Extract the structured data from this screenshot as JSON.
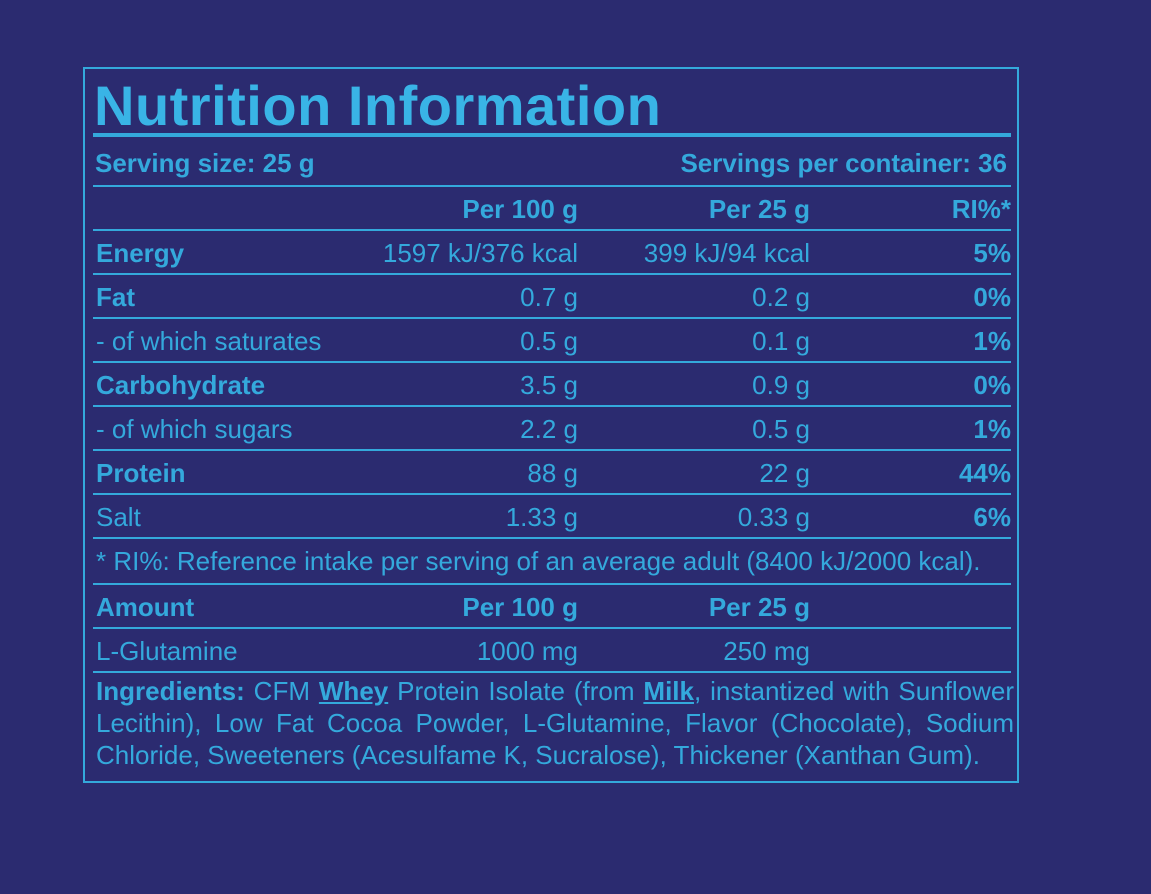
{
  "title": "Nutrition Information",
  "serving": {
    "size": "Serving size: 25 g",
    "per_container": "Servings per container: 36"
  },
  "headers": {
    "c1": "Per 100 g",
    "c2": "Per 25 g",
    "c3": "RI%*"
  },
  "rows": [
    {
      "name": "Energy",
      "per100": "1597 kJ/376 kcal",
      "per25": "399 kJ/94 kcal",
      "ri": "5%"
    },
    {
      "name": "Fat",
      "per100": "0.7 g",
      "per25": "0.2 g",
      "ri": "0%"
    },
    {
      "name": "- of which saturates",
      "per100": "0.5 g",
      "per25": "0.1 g",
      "ri": "1%"
    },
    {
      "name": "Carbohydrate",
      "per100": "3.5 g",
      "per25": "0.9 g",
      "ri": "0%"
    },
    {
      "name": "- of which sugars",
      "per100": "2.2 g",
      "per25": "0.5 g",
      "ri": "1%"
    },
    {
      "name": "Protein",
      "per100": "88 g",
      "per25": "22 g",
      "ri": "44%"
    },
    {
      "name": "Salt",
      "per100": "1.33 g",
      "per25": "0.33 g",
      "ri": "6%"
    }
  ],
  "footnote": "* RI%: Reference intake per serving of an average adult (8400 kJ/2000 kcal).",
  "amount": {
    "headers": {
      "c0": "Amount",
      "c1": "Per 100 g",
      "c2": "Per 25 g"
    },
    "row": {
      "name": "L-Glutamine",
      "per100": "1000 mg",
      "per25": "250 mg"
    }
  },
  "ingredients": {
    "label": "Ingredients:",
    "t1": " CFM ",
    "allergen1": "Whey",
    "t2": " Protein Isolate (from ",
    "allergen2": "Milk",
    "t3": ", instantized with Sunflower Lecithin), Low Fat Cocoa Powder, L-Glutamine, Flavor (Chocolate), Sodium Chloride, Sweeteners (Acesulfame K, Sucralose), Thickener (Xanthan Gum)."
  },
  "colors": {
    "background": "#2b2b70",
    "foreground": "#34a9dc"
  }
}
